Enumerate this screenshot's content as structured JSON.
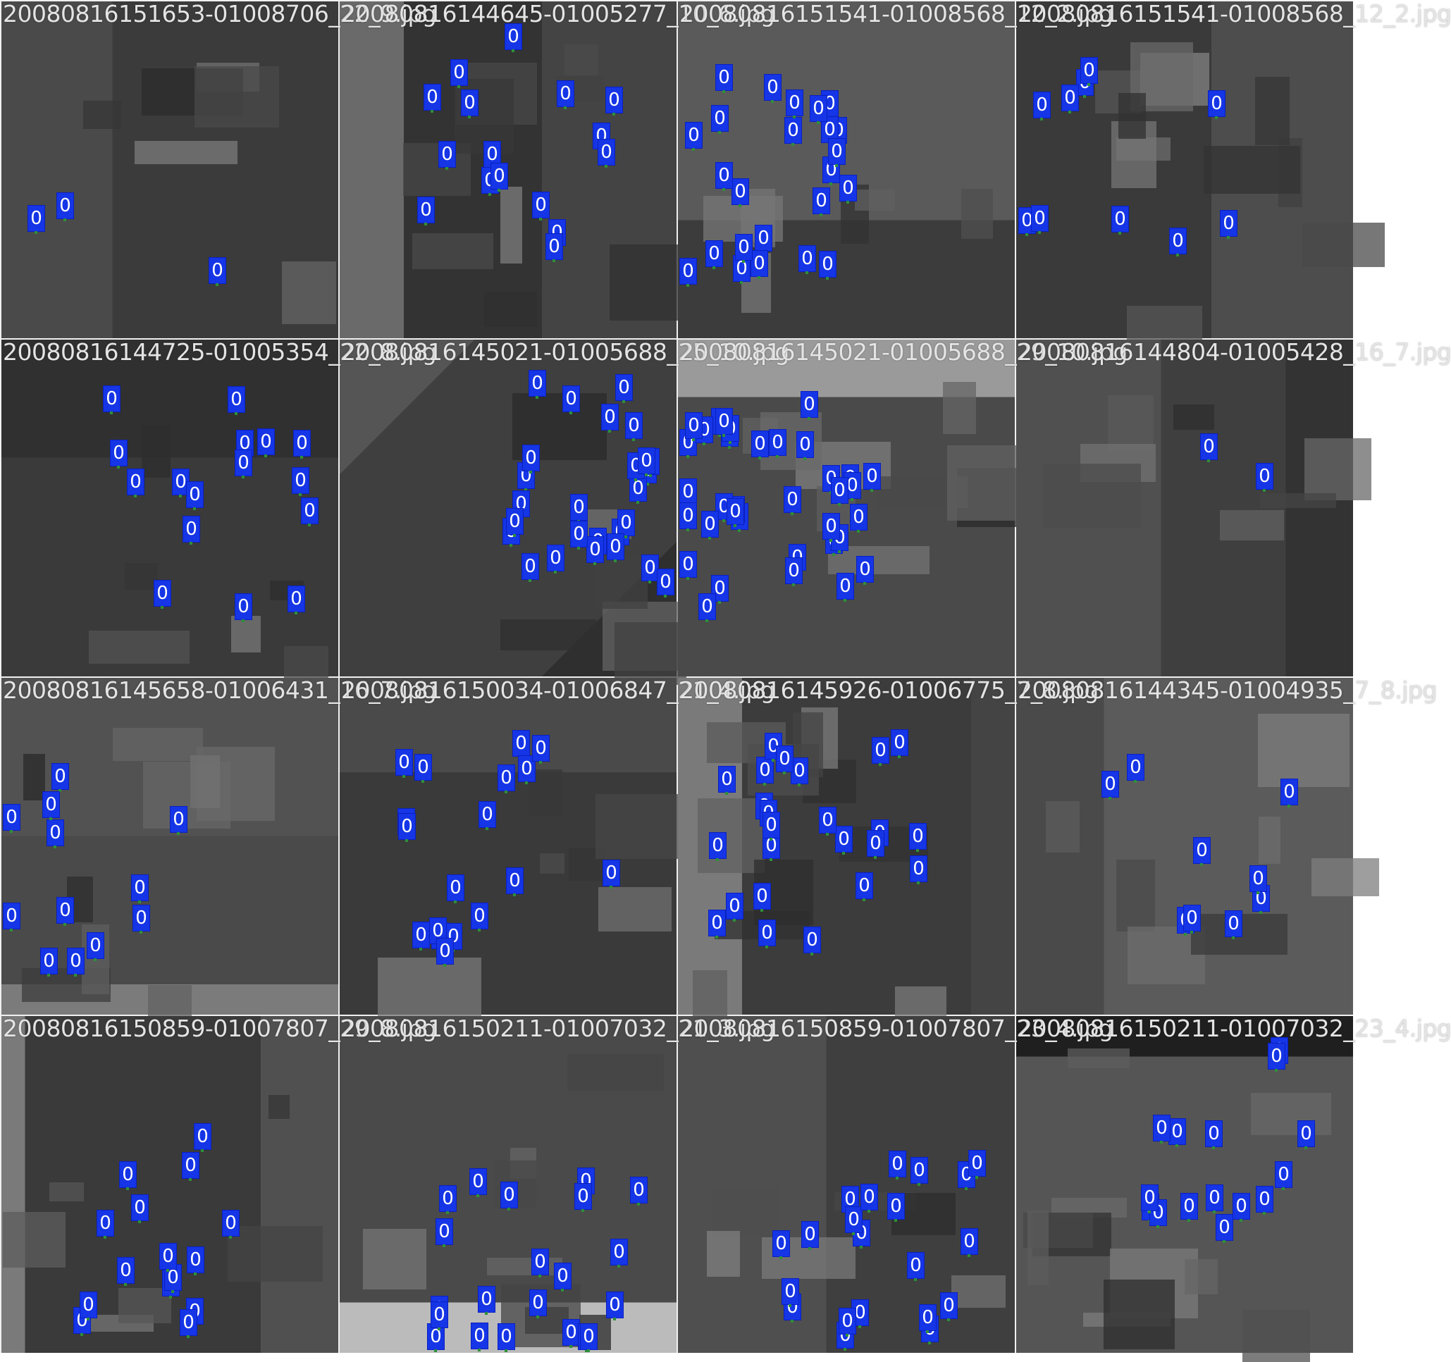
{
  "colors": {
    "background": "#f0f0f0",
    "detection_box": "#1535e6",
    "label_text": "#e4e4e4"
  },
  "detection_class_label": "0",
  "tiles": [
    {
      "label": "20080816151653-01008706_22_9.jpg",
      "detections": 3
    },
    {
      "label": "20080816144645-01005277_10_6.jpg",
      "detections": 16
    },
    {
      "label": "20080816151541-01008568_12_2.jpg",
      "detections": 24
    },
    {
      "label": "20080816151541-01008568_12_2.jpg",
      "detections": 10
    },
    {
      "label": "20080816144725-01005354_22_8.jpg",
      "detections": 16
    },
    {
      "label": "20080816145021-01005688_25_10.jpg",
      "detections": 26
    },
    {
      "label": "20080816145021-01005688_29_10.jpg",
      "detections": 36
    },
    {
      "label": "20080816144804-01005428_16_7.jpg",
      "detections": 2
    },
    {
      "label": "20080816145658-01006431_16_7.jpg",
      "detections": 12
    },
    {
      "label": "20080816150034-01006847_21_4.jpg",
      "detections": 18
    },
    {
      "label": "20080816145926-01006775_7_8.jpg",
      "detections": 24
    },
    {
      "label": "20080816144345-01004935_7_8.jpg",
      "detections": 9
    },
    {
      "label": "20080816150859-01007807_29_8.jpg",
      "detections": 15
    },
    {
      "label": "20080816150211-01007032_21_3.jpg",
      "detections": 21
    },
    {
      "label": "20080816150859-01007807_23_4.jpg",
      "detections": 21
    },
    {
      "label": "20080816150211-01007032_23_4.jpg",
      "detections": 15
    }
  ]
}
